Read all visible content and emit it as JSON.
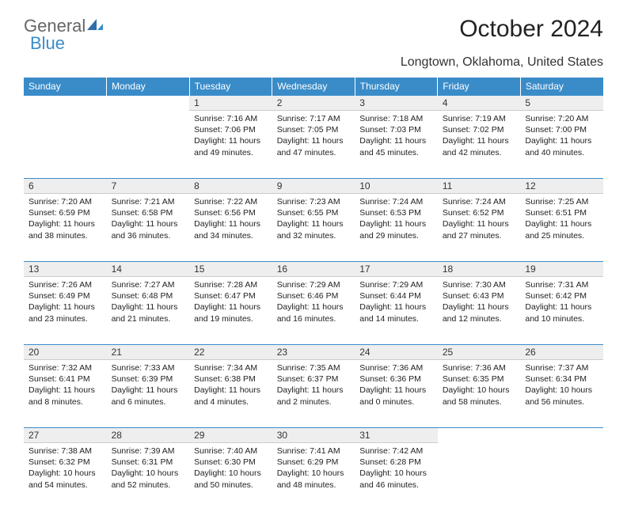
{
  "logo": {
    "text1": "General",
    "text2": "Blue"
  },
  "title": "October 2024",
  "subtitle": "Longtown, Oklahoma, United States",
  "colors": {
    "header_bg": "#3a8cc9",
    "header_text": "#ffffff",
    "daynum_bg": "#eeeeee",
    "border": "#3a8cc9"
  },
  "dayHeaders": [
    "Sunday",
    "Monday",
    "Tuesday",
    "Wednesday",
    "Thursday",
    "Friday",
    "Saturday"
  ],
  "weeks": [
    {
      "nums": [
        "",
        "",
        "1",
        "2",
        "3",
        "4",
        "5"
      ],
      "cells": [
        null,
        null,
        {
          "sunrise": "Sunrise: 7:16 AM",
          "sunset": "Sunset: 7:06 PM",
          "daylight1": "Daylight: 11 hours",
          "daylight2": "and 49 minutes."
        },
        {
          "sunrise": "Sunrise: 7:17 AM",
          "sunset": "Sunset: 7:05 PM",
          "daylight1": "Daylight: 11 hours",
          "daylight2": "and 47 minutes."
        },
        {
          "sunrise": "Sunrise: 7:18 AM",
          "sunset": "Sunset: 7:03 PM",
          "daylight1": "Daylight: 11 hours",
          "daylight2": "and 45 minutes."
        },
        {
          "sunrise": "Sunrise: 7:19 AM",
          "sunset": "Sunset: 7:02 PM",
          "daylight1": "Daylight: 11 hours",
          "daylight2": "and 42 minutes."
        },
        {
          "sunrise": "Sunrise: 7:20 AM",
          "sunset": "Sunset: 7:00 PM",
          "daylight1": "Daylight: 11 hours",
          "daylight2": "and 40 minutes."
        }
      ]
    },
    {
      "nums": [
        "6",
        "7",
        "8",
        "9",
        "10",
        "11",
        "12"
      ],
      "cells": [
        {
          "sunrise": "Sunrise: 7:20 AM",
          "sunset": "Sunset: 6:59 PM",
          "daylight1": "Daylight: 11 hours",
          "daylight2": "and 38 minutes."
        },
        {
          "sunrise": "Sunrise: 7:21 AM",
          "sunset": "Sunset: 6:58 PM",
          "daylight1": "Daylight: 11 hours",
          "daylight2": "and 36 minutes."
        },
        {
          "sunrise": "Sunrise: 7:22 AM",
          "sunset": "Sunset: 6:56 PM",
          "daylight1": "Daylight: 11 hours",
          "daylight2": "and 34 minutes."
        },
        {
          "sunrise": "Sunrise: 7:23 AM",
          "sunset": "Sunset: 6:55 PM",
          "daylight1": "Daylight: 11 hours",
          "daylight2": "and 32 minutes."
        },
        {
          "sunrise": "Sunrise: 7:24 AM",
          "sunset": "Sunset: 6:53 PM",
          "daylight1": "Daylight: 11 hours",
          "daylight2": "and 29 minutes."
        },
        {
          "sunrise": "Sunrise: 7:24 AM",
          "sunset": "Sunset: 6:52 PM",
          "daylight1": "Daylight: 11 hours",
          "daylight2": "and 27 minutes."
        },
        {
          "sunrise": "Sunrise: 7:25 AM",
          "sunset": "Sunset: 6:51 PM",
          "daylight1": "Daylight: 11 hours",
          "daylight2": "and 25 minutes."
        }
      ]
    },
    {
      "nums": [
        "13",
        "14",
        "15",
        "16",
        "17",
        "18",
        "19"
      ],
      "cells": [
        {
          "sunrise": "Sunrise: 7:26 AM",
          "sunset": "Sunset: 6:49 PM",
          "daylight1": "Daylight: 11 hours",
          "daylight2": "and 23 minutes."
        },
        {
          "sunrise": "Sunrise: 7:27 AM",
          "sunset": "Sunset: 6:48 PM",
          "daylight1": "Daylight: 11 hours",
          "daylight2": "and 21 minutes."
        },
        {
          "sunrise": "Sunrise: 7:28 AM",
          "sunset": "Sunset: 6:47 PM",
          "daylight1": "Daylight: 11 hours",
          "daylight2": "and 19 minutes."
        },
        {
          "sunrise": "Sunrise: 7:29 AM",
          "sunset": "Sunset: 6:46 PM",
          "daylight1": "Daylight: 11 hours",
          "daylight2": "and 16 minutes."
        },
        {
          "sunrise": "Sunrise: 7:29 AM",
          "sunset": "Sunset: 6:44 PM",
          "daylight1": "Daylight: 11 hours",
          "daylight2": "and 14 minutes."
        },
        {
          "sunrise": "Sunrise: 7:30 AM",
          "sunset": "Sunset: 6:43 PM",
          "daylight1": "Daylight: 11 hours",
          "daylight2": "and 12 minutes."
        },
        {
          "sunrise": "Sunrise: 7:31 AM",
          "sunset": "Sunset: 6:42 PM",
          "daylight1": "Daylight: 11 hours",
          "daylight2": "and 10 minutes."
        }
      ]
    },
    {
      "nums": [
        "20",
        "21",
        "22",
        "23",
        "24",
        "25",
        "26"
      ],
      "cells": [
        {
          "sunrise": "Sunrise: 7:32 AM",
          "sunset": "Sunset: 6:41 PM",
          "daylight1": "Daylight: 11 hours",
          "daylight2": "and 8 minutes."
        },
        {
          "sunrise": "Sunrise: 7:33 AM",
          "sunset": "Sunset: 6:39 PM",
          "daylight1": "Daylight: 11 hours",
          "daylight2": "and 6 minutes."
        },
        {
          "sunrise": "Sunrise: 7:34 AM",
          "sunset": "Sunset: 6:38 PM",
          "daylight1": "Daylight: 11 hours",
          "daylight2": "and 4 minutes."
        },
        {
          "sunrise": "Sunrise: 7:35 AM",
          "sunset": "Sunset: 6:37 PM",
          "daylight1": "Daylight: 11 hours",
          "daylight2": "and 2 minutes."
        },
        {
          "sunrise": "Sunrise: 7:36 AM",
          "sunset": "Sunset: 6:36 PM",
          "daylight1": "Daylight: 11 hours",
          "daylight2": "and 0 minutes."
        },
        {
          "sunrise": "Sunrise: 7:36 AM",
          "sunset": "Sunset: 6:35 PM",
          "daylight1": "Daylight: 10 hours",
          "daylight2": "and 58 minutes."
        },
        {
          "sunrise": "Sunrise: 7:37 AM",
          "sunset": "Sunset: 6:34 PM",
          "daylight1": "Daylight: 10 hours",
          "daylight2": "and 56 minutes."
        }
      ]
    },
    {
      "nums": [
        "27",
        "28",
        "29",
        "30",
        "31",
        "",
        ""
      ],
      "cells": [
        {
          "sunrise": "Sunrise: 7:38 AM",
          "sunset": "Sunset: 6:32 PM",
          "daylight1": "Daylight: 10 hours",
          "daylight2": "and 54 minutes."
        },
        {
          "sunrise": "Sunrise: 7:39 AM",
          "sunset": "Sunset: 6:31 PM",
          "daylight1": "Daylight: 10 hours",
          "daylight2": "and 52 minutes."
        },
        {
          "sunrise": "Sunrise: 7:40 AM",
          "sunset": "Sunset: 6:30 PM",
          "daylight1": "Daylight: 10 hours",
          "daylight2": "and 50 minutes."
        },
        {
          "sunrise": "Sunrise: 7:41 AM",
          "sunset": "Sunset: 6:29 PM",
          "daylight1": "Daylight: 10 hours",
          "daylight2": "and 48 minutes."
        },
        {
          "sunrise": "Sunrise: 7:42 AM",
          "sunset": "Sunset: 6:28 PM",
          "daylight1": "Daylight: 10 hours",
          "daylight2": "and 46 minutes."
        },
        null,
        null
      ]
    }
  ]
}
